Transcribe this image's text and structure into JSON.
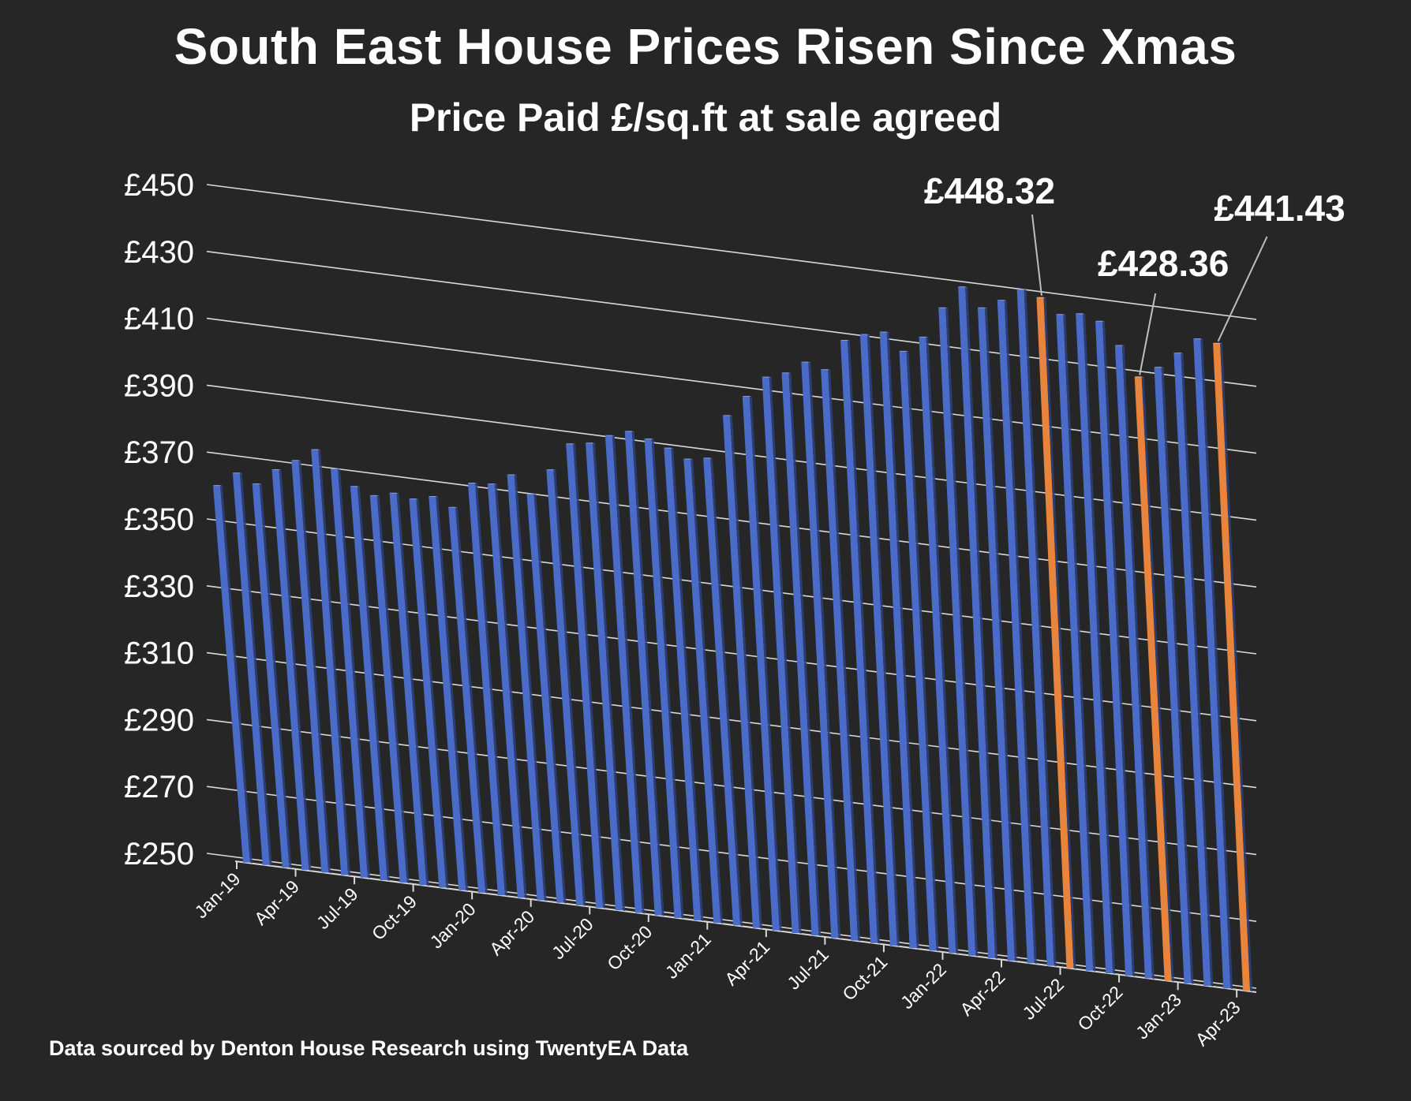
{
  "title": "South East House Prices Risen Since Xmas",
  "subtitle": "Price Paid £/sq.ft at sale agreed",
  "footnote": "Data sourced by Denton House Research using TwentyEA Data",
  "colors": {
    "background": "#262626",
    "bar": "#4a6bc8",
    "highlight": "#e8843c",
    "grid": "#d9d9d9",
    "text": "#ffffff"
  },
  "chart_data": {
    "type": "bar",
    "title": "South East House Prices Risen Since Xmas",
    "subtitle": "Price Paid £/sq.ft at sale agreed",
    "xlabel": "",
    "ylabel": "",
    "ylim": [
      250,
      450
    ],
    "y_ticks": [
      "£250",
      "£270",
      "£290",
      "£310",
      "£330",
      "£350",
      "£370",
      "£390",
      "£410",
      "£430",
      "£450"
    ],
    "x_tick_labels": [
      "Jan-19",
      "Apr-19",
      "Jul-19",
      "Oct-19",
      "Jan-20",
      "Apr-20",
      "Jul-20",
      "Oct-20",
      "Jan-21",
      "Apr-21",
      "Jul-21",
      "Oct-21",
      "Jan-22",
      "Apr-22",
      "Jul-22",
      "Oct-22",
      "Jan-23",
      "Apr-23"
    ],
    "categories": [
      "Jan-19",
      "Feb-19",
      "Mar-19",
      "Apr-19",
      "May-19",
      "Jun-19",
      "Jul-19",
      "Aug-19",
      "Sep-19",
      "Oct-19",
      "Nov-19",
      "Dec-19",
      "Jan-20",
      "Feb-20",
      "Mar-20",
      "Apr-20",
      "May-20",
      "Jun-20",
      "Jul-20",
      "Aug-20",
      "Sep-20",
      "Oct-20",
      "Nov-20",
      "Dec-20",
      "Jan-21",
      "Feb-21",
      "Mar-21",
      "Apr-21",
      "May-21",
      "Jun-21",
      "Jul-21",
      "Aug-21",
      "Sep-21",
      "Oct-21",
      "Nov-21",
      "Dec-21",
      "Jan-22",
      "Feb-22",
      "Mar-22",
      "Apr-22",
      "May-22",
      "Jun-22",
      "Jul-22",
      "Aug-22",
      "Sep-22",
      "Oct-22",
      "Nov-22",
      "Dec-22",
      "Jan-23",
      "Feb-23",
      "Mar-23",
      "Apr-23"
    ],
    "values": [
      360.5,
      365.0,
      362.5,
      367.5,
      371.0,
      375.0,
      370.0,
      365.5,
      363.5,
      365.0,
      364.0,
      365.5,
      363.0,
      371.0,
      371.5,
      375.0,
      370.0,
      378.0,
      386.5,
      387.5,
      390.5,
      392.5,
      391.0,
      389.0,
      386.5,
      387.5,
      401.0,
      407.5,
      414.0,
      416.0,
      420.0,
      418.5,
      428.0,
      430.5,
      432.0,
      427.0,
      432.0,
      441.5,
      448.5,
      443.0,
      446.0,
      450.0,
      448.32,
      444.0,
      445.0,
      443.5,
      437.0,
      428.36,
      432.0,
      437.0,
      442.0,
      441.43
    ],
    "highlighted": [
      42,
      47,
      51
    ],
    "data_labels": [
      {
        "index": 42,
        "text": "£448.32"
      },
      {
        "index": 47,
        "text": "£428.36"
      },
      {
        "index": 51,
        "text": "£441.43"
      }
    ],
    "grid": true,
    "legend": "none"
  }
}
